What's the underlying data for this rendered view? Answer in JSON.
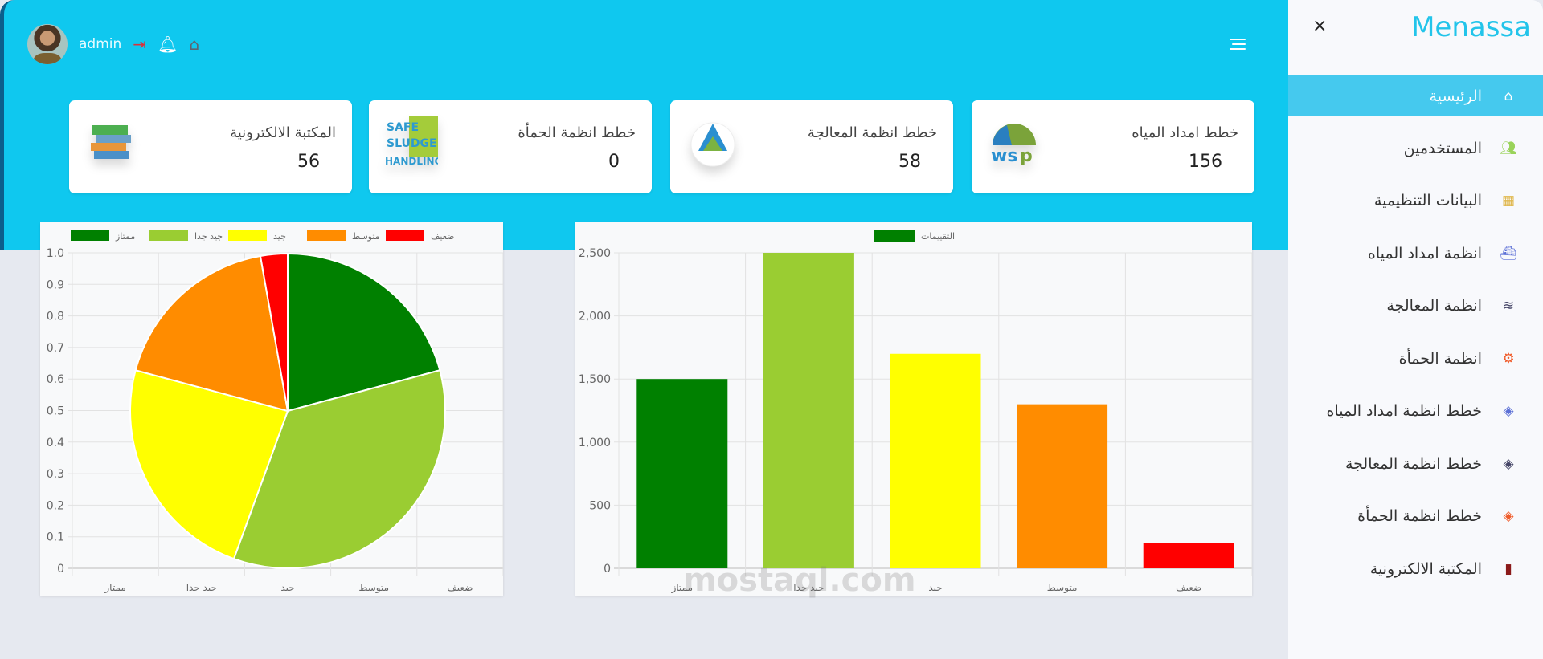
{
  "header": {
    "username": "admin",
    "icons": [
      "logout-icon",
      "bell-icon",
      "home-icon",
      "menu-icon"
    ]
  },
  "cards": [
    {
      "title": "المكتبة الالكترونية",
      "value": "56",
      "logo": "books-icon"
    },
    {
      "title": "خطط انظمة الحمأة",
      "value": "0",
      "logo": "safe-sludge-handling-logo",
      "logo_text": "SAFE SLUDGE HANDLING"
    },
    {
      "title": "خطط انظمة المعالجة",
      "value": "58",
      "logo": "sanitation-safety-logo"
    },
    {
      "title": "خطط امداد المياه",
      "value": "156",
      "logo": "wsp-logo",
      "logo_text": "wsp"
    }
  ],
  "sidebar": {
    "brand": "Menassa",
    "close": "×",
    "items": [
      {
        "label": "الرئيسية",
        "icon": "home-icon",
        "color": "#ffffff",
        "active": true
      },
      {
        "label": "المستخدمين",
        "icon": "users-icon",
        "color": "#9ad35a"
      },
      {
        "label": "البيانات التنظيمية",
        "icon": "building-icon",
        "color": "#e0b84e"
      },
      {
        "label": "انظمة امداد المياه",
        "icon": "water-supply-icon",
        "color": "#5b6fd6"
      },
      {
        "label": "انظمة المعالجة",
        "icon": "water-treatment-icon",
        "color": "#444466"
      },
      {
        "label": "انظمة الحمأة",
        "icon": "gears-icon",
        "color": "#f05a28"
      },
      {
        "label": "خطط انظمة امداد المياه",
        "icon": "layers-icon",
        "color": "#5b6fd6"
      },
      {
        "label": "خطط انظمة المعالجة",
        "icon": "layers-icon",
        "color": "#444466"
      },
      {
        "label": "خطط انظمة الحمأة",
        "icon": "layers-icon",
        "color": "#f05a28"
      },
      {
        "label": "المكتبة الالكترونية",
        "icon": "book-icon",
        "color": "#8b1a1a"
      }
    ]
  },
  "watermark": "mostaql.com",
  "chart_data": [
    {
      "type": "pie",
      "categories": [
        "ممتاز",
        "جيد جدا",
        "جيد",
        "متوسط",
        "ضعيف"
      ],
      "values": [
        1500,
        2500,
        1700,
        1300,
        200
      ],
      "colors": [
        "#008000",
        "#9acd32",
        "#ffff00",
        "#ff8c00",
        "#ff0000"
      ],
      "legend": "top",
      "yticks": [
        "0",
        "0.1",
        "0.2",
        "0.3",
        "0.4",
        "0.5",
        "0.6",
        "0.7",
        "0.8",
        "0.9",
        "1.0"
      ],
      "ylim": [
        0,
        1
      ],
      "grid": true
    },
    {
      "type": "bar",
      "categories": [
        "ممتاز",
        "جيد جدا",
        "جيد",
        "متوسط",
        "ضعيف"
      ],
      "series": [
        {
          "name": "التقييمات",
          "values": [
            1500,
            2500,
            1700,
            1300,
            200
          ]
        }
      ],
      "colors": [
        "#008000",
        "#9acd32",
        "#ffff00",
        "#ff8c00",
        "#ff0000"
      ],
      "legend_color": "#008000",
      "legend": "top",
      "yticks": [
        "0",
        "500",
        "1,000",
        "1,500",
        "2,000",
        "2,500"
      ],
      "ylim": [
        0,
        2500
      ],
      "grid": true
    }
  ]
}
